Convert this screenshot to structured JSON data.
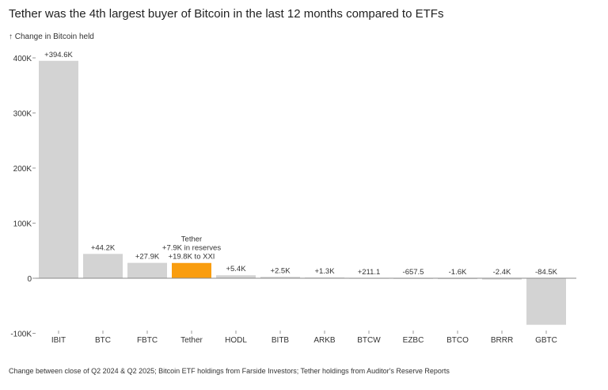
{
  "chart_data": {
    "type": "bar",
    "title": "Tether was the 4th largest buyer of Bitcoin in the last 12 months compared to ETFs",
    "ylabel": "↑ Change in Bitcoin held",
    "footer": "Change between close of Q2 2024 & Q2 2025; Bitcoin ETF holdings from Farside Investors; Tether holdings from Auditor's Reserve Reports",
    "ylim": [
      -100000,
      400000
    ],
    "yticks": [
      400000,
      300000,
      200000,
      100000,
      0,
      -100000
    ],
    "ytick_labels": [
      "400K",
      "300K",
      "200K",
      "100K",
      "0",
      "-100K"
    ],
    "grid": false,
    "categories": [
      "IBIT",
      "BTC",
      "FBTC",
      "Tether",
      "HODL",
      "BITB",
      "ARKB",
      "BTCW",
      "EZBC",
      "BTCO",
      "BRRR",
      "GBTC"
    ],
    "values": [
      394600,
      44200,
      27900,
      27700,
      5400,
      2500,
      1300,
      211.1,
      -657.5,
      -1600,
      -2400,
      -84500
    ],
    "data_labels": [
      [
        "+394.6K"
      ],
      [
        "+44.2K"
      ],
      [
        "+27.9K"
      ],
      [
        "Tether",
        "+7.9K in reserves",
        "+19.8K to XXI"
      ],
      [
        "+5.4K"
      ],
      [
        "+2.5K"
      ],
      [
        "+1.3K"
      ],
      [
        "+211.1"
      ],
      [
        "-657.5"
      ],
      [
        "-1.6K"
      ],
      [
        "-2.4K"
      ],
      [
        "-84.5K"
      ]
    ],
    "colors": {
      "default": "#d3d3d3",
      "highlight": "#f99d0f",
      "highlight_category": "Tether"
    }
  }
}
